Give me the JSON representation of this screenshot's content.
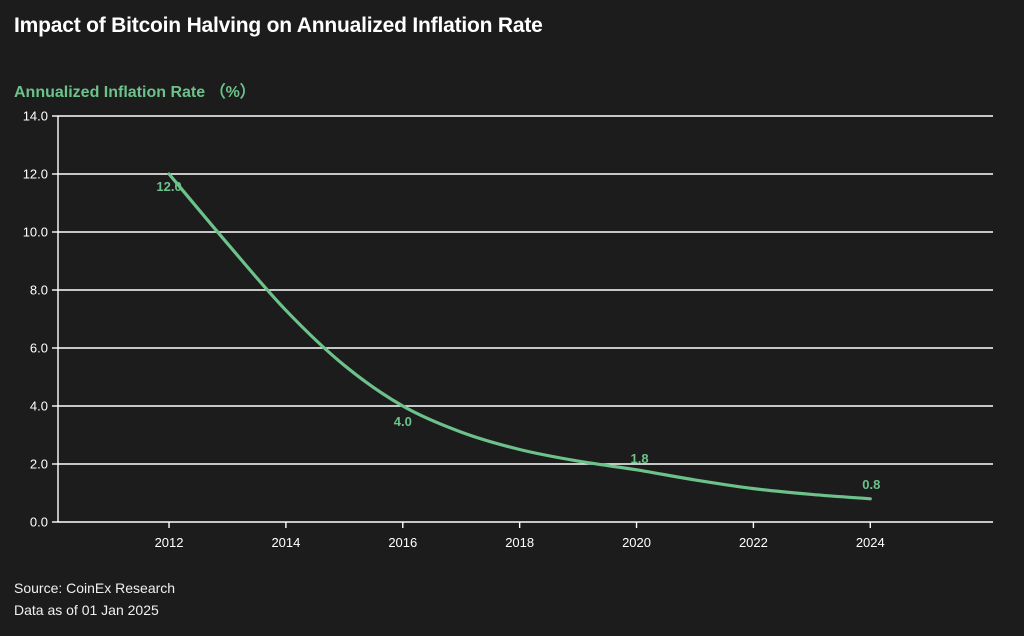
{
  "title": "Impact of Bitcoin Halving on Annualized Inflation Rate",
  "footer": {
    "source": "Source: CoinEx Research",
    "data_as_of": "Data as of 01 Jan 2025"
  },
  "colors": {
    "background": "#1c1c1c",
    "line": "#6cc28a",
    "grid": "#ffffff",
    "text": "#ffffff"
  },
  "chart_data": {
    "type": "line",
    "title": "Impact of Bitcoin Halving on Annualized Inflation Rate",
    "xlabel": "",
    "ylabel": "Annualized Inflation Rate （%）",
    "xlim": [
      2010.1,
      2026.1
    ],
    "ylim": [
      0,
      14
    ],
    "x_ticks": [
      2012,
      2014,
      2016,
      2018,
      2020,
      2022,
      2024
    ],
    "y_ticks": [
      0,
      2,
      4,
      6,
      8,
      10,
      12,
      14
    ],
    "y_tick_labels": [
      "0.0",
      "2.0",
      "4.0",
      "6.0",
      "8.0",
      "10.0",
      "12.0",
      "14.0"
    ],
    "grid": true,
    "series": [
      {
        "x": [
          2012,
          2013,
          2014,
          2015,
          2016,
          2017,
          2018,
          2019,
          2020,
          2021,
          2022,
          2023,
          2024
        ],
        "values": [
          12.0,
          9.6,
          7.3,
          5.4,
          4.0,
          3.1,
          2.5,
          2.1,
          1.8,
          1.45,
          1.15,
          0.95,
          0.8
        ]
      }
    ],
    "data_labels": [
      {
        "x": 2012,
        "y": 12.0,
        "text": "12.0"
      },
      {
        "x": 2016,
        "y": 4.0,
        "text": "4.0"
      },
      {
        "x": 2020,
        "y": 1.8,
        "text": "1.8"
      },
      {
        "x": 2024,
        "y": 0.8,
        "text": "0.8"
      }
    ]
  }
}
